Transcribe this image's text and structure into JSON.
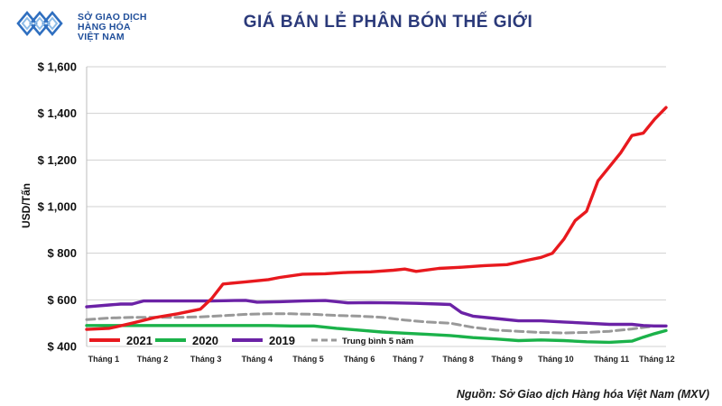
{
  "header": {
    "logo_lines": [
      "SỞ GIAO DỊCH",
      "HÀNG HÓA",
      "VIỆT NAM"
    ]
  },
  "source": "Nguồn: Sở Giao dịch Hàng hóa Việt Nam (MXV)",
  "colors": {
    "title": "#2b3a7a",
    "logo": "#1f4e9a"
  },
  "chart_data": {
    "type": "line",
    "title": "GIÁ BÁN LẺ PHÂN BÓN THẾ GIỚI",
    "ylabel": "USD/Tấn",
    "xlabel": "",
    "ylim": [
      400,
      1600
    ],
    "yticks": [
      400,
      600,
      800,
      1000,
      1200,
      1400,
      1600
    ],
    "ytick_labels": [
      "$ 400",
      "$ 600",
      "$ 800",
      "$ 1,000",
      "$ 1,200",
      "$ 1,400",
      "$ 1,600"
    ],
    "xlim": [
      0,
      51
    ],
    "categories": [
      "Tháng 1",
      "Tháng 2",
      "Tháng 3",
      "Tháng 4",
      "Tháng 5",
      "Tháng 6",
      "Tháng 7",
      "Tháng 8",
      "Tháng 9",
      "Tháng 10",
      "Tháng 11",
      "Tháng 12"
    ],
    "category_positions": [
      1.5,
      5.8,
      10.5,
      15,
      19.5,
      24,
      28.3,
      32.7,
      37,
      41.3,
      46.2,
      50.2
    ],
    "grid": true,
    "legend_position": "bottom",
    "series": [
      {
        "name": "2021",
        "color": "#e8191e",
        "style": "solid",
        "x": [
          0,
          2,
          4,
          6,
          8,
          10,
          11,
          12,
          14,
          16,
          17,
          19,
          21,
          23,
          25,
          27,
          28,
          29,
          31,
          33,
          35,
          37,
          39,
          40,
          41,
          42,
          43,
          44,
          45,
          46,
          47,
          48,
          49,
          50,
          51
        ],
        "y": [
          473,
          478,
          500,
          524,
          540,
          560,
          605,
          668,
          677,
          687,
          696,
          710,
          712,
          718,
          720,
          727,
          732,
          722,
          735,
          740,
          747,
          751,
          772,
          782,
          800,
          860,
          940,
          980,
          1110,
          1170,
          1230,
          1305,
          1315,
          1375,
          1425
        ]
      },
      {
        "name": "2020",
        "color": "#1bb24a",
        "style": "solid",
        "x": [
          0,
          2,
          4,
          6,
          8,
          10,
          12,
          14,
          16,
          18,
          20,
          22,
          24,
          26,
          28,
          30,
          32,
          34,
          36,
          38,
          40,
          42,
          44,
          46,
          48,
          49,
          50,
          51
        ],
        "y": [
          490,
          490,
          490,
          490,
          490,
          490,
          490,
          490,
          490,
          488,
          488,
          478,
          470,
          462,
          457,
          452,
          447,
          438,
          432,
          425,
          428,
          425,
          420,
          418,
          423,
          440,
          455,
          468
        ]
      },
      {
        "name": "2019",
        "color": "#6b22a6",
        "style": "solid",
        "x": [
          0,
          2,
          3,
          4,
          5,
          7,
          9,
          11,
          13,
          14,
          15,
          17,
          19,
          21,
          23,
          25,
          27,
          29,
          31,
          32,
          33,
          34,
          36,
          38,
          40,
          42,
          44,
          46,
          48,
          49,
          50,
          51
        ],
        "y": [
          570,
          578,
          582,
          582,
          595,
          595,
          595,
          595,
          597,
          598,
          590,
          592,
          595,
          597,
          587,
          588,
          587,
          585,
          582,
          580,
          545,
          530,
          520,
          510,
          510,
          505,
          500,
          495,
          495,
          490,
          488,
          488
        ]
      },
      {
        "name": "Trung bình 5 năm",
        "color": "#999999",
        "style": "dashed",
        "x": [
          0,
          2,
          4,
          6,
          8,
          10,
          12,
          14,
          16,
          18,
          20,
          22,
          24,
          26,
          28,
          30,
          32,
          34,
          36,
          38,
          40,
          42,
          44,
          46,
          48,
          50,
          51
        ],
        "y": [
          515,
          522,
          525,
          525,
          525,
          527,
          532,
          538,
          540,
          540,
          538,
          533,
          530,
          525,
          513,
          505,
          500,
          482,
          470,
          465,
          460,
          458,
          460,
          465,
          475,
          488,
          488
        ]
      }
    ]
  }
}
